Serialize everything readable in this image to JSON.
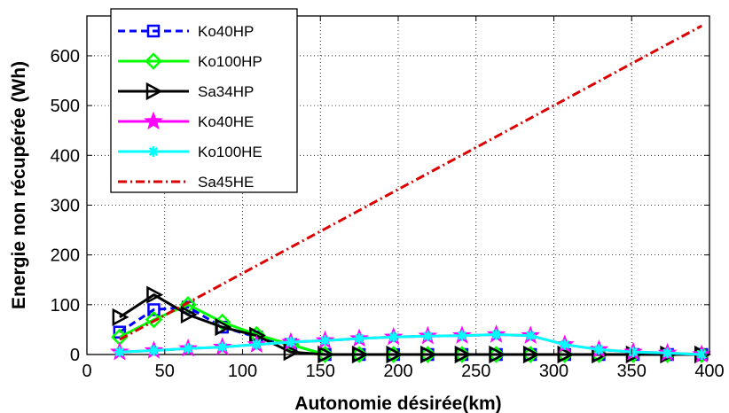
{
  "chart_data": {
    "type": "line",
    "title": "",
    "xlabel": "Autonomie désirée(km)",
    "ylabel": "Energie non récupérée (Wh)",
    "xlim": [
      0,
      400
    ],
    "ylim": [
      0,
      680
    ],
    "xticks": [
      0,
      50,
      100,
      150,
      200,
      250,
      300,
      350,
      400
    ],
    "yticks": [
      0,
      100,
      200,
      300,
      400,
      500,
      600
    ],
    "grid": true,
    "legend_position": "top-left",
    "x": [
      21,
      43,
      65,
      87,
      109,
      131,
      153,
      175,
      197,
      219,
      241,
      263,
      285,
      307,
      329,
      351,
      373,
      395
    ],
    "series": [
      {
        "name": "Ko40HP",
        "color": "#0000ff",
        "marker": "square",
        "line_style": "dashed",
        "values": [
          45,
          90,
          95,
          55,
          35,
          20,
          0,
          0,
          0,
          0,
          0,
          0,
          0,
          0,
          0,
          0,
          0,
          0
        ]
      },
      {
        "name": "Ko100HP",
        "color": "#00ff00",
        "marker": "diamond",
        "line_style": "solid",
        "values": [
          35,
          70,
          100,
          65,
          40,
          20,
          0,
          0,
          0,
          0,
          0,
          0,
          0,
          0,
          0,
          0,
          0,
          0
        ]
      },
      {
        "name": "Sa34HP",
        "color": "#000000",
        "marker": "triangle-right",
        "line_style": "solid",
        "values": [
          75,
          120,
          80,
          55,
          38,
          5,
          0,
          0,
          0,
          0,
          0,
          0,
          0,
          0,
          0,
          0,
          0,
          0
        ]
      },
      {
        "name": "Ko40HE",
        "color": "#ff00ff",
        "marker": "star",
        "line_style": "solid",
        "values": [
          5,
          8,
          12,
          15,
          20,
          25,
          28,
          32,
          35,
          37,
          38,
          40,
          38,
          20,
          10,
          5,
          3,
          0
        ]
      },
      {
        "name": "Ko100HE",
        "color": "#00ffff",
        "marker": "asterisk",
        "line_style": "solid",
        "values": [
          5,
          8,
          12,
          15,
          20,
          25,
          28,
          32,
          35,
          37,
          38,
          40,
          38,
          20,
          10,
          5,
          3,
          0
        ]
      },
      {
        "name": "Sa45HE",
        "color": "#dd0000",
        "marker": "none",
        "line_style": "dash-dot",
        "x": [
          21,
          395
        ],
        "values": [
          30,
          660
        ]
      }
    ]
  }
}
